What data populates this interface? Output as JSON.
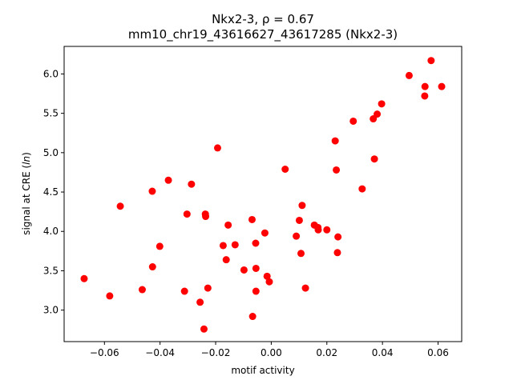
{
  "chart_data": {
    "type": "scatter",
    "title_line1": "Nkx2-3, ρ = 0.67",
    "title_line2": "mm10_chr19_43616627_43617285 (Nkx2-3)",
    "xlabel": "motif activity",
    "ylabel": "signal at CRE (ln)",
    "xlim": [
      -0.0745,
      0.0685
    ],
    "ylim": [
      2.6,
      6.35
    ],
    "xticks": [
      -0.06,
      -0.04,
      -0.02,
      0.0,
      0.02,
      0.04,
      0.06
    ],
    "xtick_labels": [
      "−0.06",
      "−0.04",
      "−0.02",
      "0.00",
      "0.02",
      "0.04",
      "0.06"
    ],
    "yticks": [
      3.0,
      3.5,
      4.0,
      4.5,
      5.0,
      5.5,
      6.0
    ],
    "ytick_labels": [
      "3.0",
      "3.5",
      "4.0",
      "4.5",
      "5.0",
      "5.5",
      "6.0"
    ],
    "grid": false,
    "marker_color": "#ff0000",
    "points": [
      {
        "x": -0.0673,
        "y": 3.4
      },
      {
        "x": -0.0581,
        "y": 3.18
      },
      {
        "x": -0.0543,
        "y": 4.32
      },
      {
        "x": -0.0464,
        "y": 3.26
      },
      {
        "x": -0.0428,
        "y": 4.51
      },
      {
        "x": -0.0427,
        "y": 3.55
      },
      {
        "x": -0.0401,
        "y": 3.81
      },
      {
        "x": -0.037,
        "y": 4.65
      },
      {
        "x": -0.0312,
        "y": 3.24
      },
      {
        "x": -0.0303,
        "y": 4.22
      },
      {
        "x": -0.0287,
        "y": 4.6
      },
      {
        "x": -0.0256,
        "y": 3.1
      },
      {
        "x": -0.0242,
        "y": 2.76
      },
      {
        "x": -0.0237,
        "y": 4.22
      },
      {
        "x": -0.0236,
        "y": 4.19
      },
      {
        "x": -0.0228,
        "y": 3.28
      },
      {
        "x": -0.0193,
        "y": 5.06
      },
      {
        "x": -0.0173,
        "y": 3.82
      },
      {
        "x": -0.0162,
        "y": 3.64
      },
      {
        "x": -0.0155,
        "y": 4.08
      },
      {
        "x": -0.013,
        "y": 3.83
      },
      {
        "x": -0.0098,
        "y": 3.51
      },
      {
        "x": -0.0069,
        "y": 4.15
      },
      {
        "x": -0.0067,
        "y": 2.92
      },
      {
        "x": -0.0056,
        "y": 3.85
      },
      {
        "x": -0.0055,
        "y": 3.53
      },
      {
        "x": -0.0055,
        "y": 3.24
      },
      {
        "x": -0.0023,
        "y": 3.98
      },
      {
        "x": -0.0015,
        "y": 3.43
      },
      {
        "x": -0.0007,
        "y": 3.36
      },
      {
        "x": 0.005,
        "y": 4.79
      },
      {
        "x": 0.009,
        "y": 3.94
      },
      {
        "x": 0.0101,
        "y": 4.14
      },
      {
        "x": 0.0107,
        "y": 3.72
      },
      {
        "x": 0.0111,
        "y": 4.33
      },
      {
        "x": 0.0123,
        "y": 3.28
      },
      {
        "x": 0.0155,
        "y": 4.08
      },
      {
        "x": 0.0168,
        "y": 4.05
      },
      {
        "x": 0.0169,
        "y": 4.02
      },
      {
        "x": 0.02,
        "y": 4.02
      },
      {
        "x": 0.023,
        "y": 5.15
      },
      {
        "x": 0.0234,
        "y": 4.78
      },
      {
        "x": 0.0238,
        "y": 3.73
      },
      {
        "x": 0.024,
        "y": 3.93
      },
      {
        "x": 0.0295,
        "y": 5.4
      },
      {
        "x": 0.0327,
        "y": 4.54
      },
      {
        "x": 0.0367,
        "y": 5.43
      },
      {
        "x": 0.0371,
        "y": 4.92
      },
      {
        "x": 0.0381,
        "y": 5.49
      },
      {
        "x": 0.0397,
        "y": 5.62
      },
      {
        "x": 0.0496,
        "y": 5.98
      },
      {
        "x": 0.0552,
        "y": 5.72
      },
      {
        "x": 0.0553,
        "y": 5.84
      },
      {
        "x": 0.0575,
        "y": 6.17
      },
      {
        "x": 0.0613,
        "y": 5.84
      }
    ]
  }
}
